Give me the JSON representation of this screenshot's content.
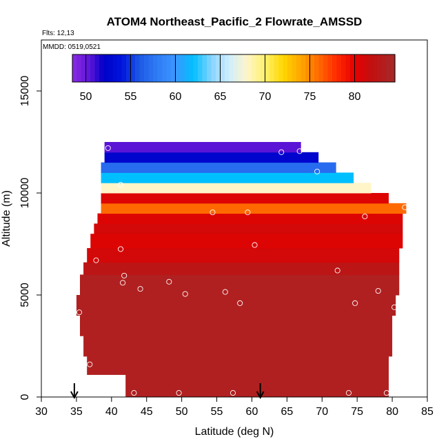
{
  "chart_data": {
    "type": "heatmap",
    "title": "ATOM4 Northeast_Pacific_2 Flowrate_AMSSD",
    "annotations": {
      "flights": "Flts: 12,13",
      "dates": "MMDD: 0519,0521"
    },
    "xlabel": "Latitude (deg N)",
    "ylabel": "Altitude (m)",
    "xlim": [
      30,
      85
    ],
    "ylim": [
      0,
      17500
    ],
    "x_ticks": [
      30,
      35,
      40,
      45,
      50,
      55,
      60,
      65,
      70,
      75,
      80,
      85
    ],
    "y_ticks": [
      0,
      5000,
      10000,
      15000
    ],
    "grid": false,
    "colorbar": {
      "vmin": 48.5,
      "vmax": 84.5,
      "ticks": [
        50,
        55,
        60,
        65,
        70,
        75,
        80
      ],
      "stops": [
        [
          48.5,
          "#8a2be2"
        ],
        [
          50.5,
          "#5a14d6"
        ],
        [
          52,
          "#0000c8"
        ],
        [
          54,
          "#0014dc"
        ],
        [
          56,
          "#1e5ae6"
        ],
        [
          58,
          "#2f7cf5"
        ],
        [
          60,
          "#3c96ff"
        ],
        [
          62,
          "#00bfff"
        ],
        [
          64,
          "#87d4ff"
        ],
        [
          66,
          "#cfeeff"
        ],
        [
          68,
          "#fff5c8"
        ],
        [
          70,
          "#fff06e"
        ],
        [
          72,
          "#ffd700"
        ],
        [
          74,
          "#ffa500"
        ],
        [
          76,
          "#ff6a00"
        ],
        [
          78,
          "#ff2a00"
        ],
        [
          80,
          "#e60000"
        ],
        [
          82,
          "#c01010"
        ],
        [
          84.5,
          "#a52a2a"
        ]
      ]
    },
    "layers": [
      {
        "alt_min": 0,
        "alt_max": 1100,
        "lat_min": 42,
        "lat_max": 79.5,
        "value": 83.5
      },
      {
        "alt_min": 1100,
        "alt_max": 2000,
        "lat_min": 36.5,
        "lat_max": 79.5,
        "value": 83.5
      },
      {
        "alt_min": 2000,
        "alt_max": 3000,
        "lat_min": 36,
        "lat_max": 80,
        "value": 83.5
      },
      {
        "alt_min": 3000,
        "alt_max": 4000,
        "lat_min": 35.5,
        "lat_max": 80,
        "value": 83.5
      },
      {
        "alt_min": 4000,
        "alt_max": 5000,
        "lat_min": 35,
        "lat_max": 80.5,
        "value": 83.5
      },
      {
        "alt_min": 5000,
        "alt_max": 6000,
        "lat_min": 35.5,
        "lat_max": 81,
        "value": 83.5
      },
      {
        "alt_min": 6000,
        "alt_max": 6600,
        "lat_min": 36,
        "lat_max": 81,
        "value": 82.5
      },
      {
        "alt_min": 6600,
        "alt_max": 7300,
        "lat_min": 36.5,
        "lat_max": 81,
        "value": 81
      },
      {
        "alt_min": 7300,
        "alt_max": 8000,
        "lat_min": 37,
        "lat_max": 81.5,
        "value": 80.5
      },
      {
        "alt_min": 8000,
        "alt_max": 8500,
        "lat_min": 37.5,
        "lat_max": 81.5,
        "value": 81
      },
      {
        "alt_min": 8500,
        "alt_max": 9000,
        "lat_min": 38,
        "lat_max": 81.5,
        "value": 80.5
      },
      {
        "alt_min": 9000,
        "alt_max": 9500,
        "lat_min": 38.5,
        "lat_max": 82,
        "value": 76
      },
      {
        "alt_min": 9500,
        "alt_max": 10000,
        "lat_min": 38.5,
        "lat_max": 79.5,
        "value": 80.5
      },
      {
        "alt_min": 10000,
        "alt_max": 10500,
        "lat_min": 38.5,
        "lat_max": 77,
        "value": 68
      },
      {
        "alt_min": 10500,
        "alt_max": 11000,
        "lat_min": 38.5,
        "lat_max": 74.5,
        "value": 62
      },
      {
        "alt_min": 11000,
        "alt_max": 11500,
        "lat_min": 38.5,
        "lat_max": 72,
        "value": 57
      },
      {
        "alt_min": 11500,
        "alt_max": 12000,
        "lat_min": 39,
        "lat_max": 69.5,
        "value": 52.5
      },
      {
        "alt_min": 12000,
        "alt_max": 12500,
        "lat_min": 39,
        "lat_max": 67,
        "value": 50.5
      }
    ],
    "observations": [
      {
        "lat": 39.5,
        "alt": 12200
      },
      {
        "lat": 64.2,
        "alt": 12000
      },
      {
        "lat": 66.8,
        "alt": 12050
      },
      {
        "lat": 69.3,
        "alt": 11050
      },
      {
        "lat": 41.3,
        "alt": 10400
      },
      {
        "lat": 81.8,
        "alt": 9300
      },
      {
        "lat": 54.4,
        "alt": 9050
      },
      {
        "lat": 59.4,
        "alt": 9050
      },
      {
        "lat": 76.1,
        "alt": 8850
      },
      {
        "lat": 60.4,
        "alt": 7450
      },
      {
        "lat": 41.3,
        "alt": 7250
      },
      {
        "lat": 37.8,
        "alt": 6700
      },
      {
        "lat": 72.2,
        "alt": 6200
      },
      {
        "lat": 41.8,
        "alt": 5950
      },
      {
        "lat": 41.6,
        "alt": 5600
      },
      {
        "lat": 48.2,
        "alt": 5650
      },
      {
        "lat": 44.1,
        "alt": 5300
      },
      {
        "lat": 50.5,
        "alt": 5050
      },
      {
        "lat": 56.2,
        "alt": 5150
      },
      {
        "lat": 78.0,
        "alt": 5200
      },
      {
        "lat": 58.3,
        "alt": 4600
      },
      {
        "lat": 74.7,
        "alt": 4600
      },
      {
        "lat": 80.3,
        "alt": 4400
      },
      {
        "lat": 35.4,
        "alt": 4150
      },
      {
        "lat": 36.9,
        "alt": 1600
      },
      {
        "lat": 36.7,
        "alt": 850
      },
      {
        "lat": 43.2,
        "alt": 200
      },
      {
        "lat": 49.6,
        "alt": 200
      },
      {
        "lat": 57.3,
        "alt": 200
      },
      {
        "lat": 73.8,
        "alt": 200
      },
      {
        "lat": 79.2,
        "alt": 200
      }
    ],
    "arrows": [
      {
        "lat": 34.7
      },
      {
        "lat": 61.2
      }
    ]
  }
}
